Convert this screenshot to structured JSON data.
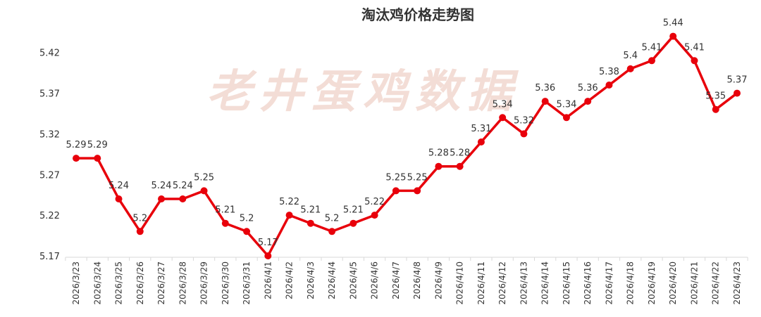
{
  "chart_data": {
    "type": "line",
    "title": "淘汰鸡价格走势图",
    "watermark": "老井蛋鸡数据",
    "x": [
      "2026/3/23",
      "2026/3/24",
      "2026/3/25",
      "2026/3/26",
      "2026/3/27",
      "2026/3/28",
      "2026/3/29",
      "2026/3/30",
      "2026/3/31",
      "2026/4/1",
      "2026/4/2",
      "2026/4/3",
      "2026/4/4",
      "2026/4/5",
      "2026/4/6",
      "2026/4/7",
      "2026/4/8",
      "2026/4/9",
      "2026/4/10",
      "2026/4/11",
      "2026/4/12",
      "2026/4/13",
      "2026/4/14",
      "2026/4/15",
      "2026/4/16",
      "2026/4/17",
      "2026/4/18",
      "2026/4/19",
      "2026/4/20",
      "2026/4/21",
      "2026/4/22",
      "2026/4/23"
    ],
    "series": [
      {
        "values": [
          5.29,
          5.29,
          5.24,
          5.2,
          5.24,
          5.24,
          5.25,
          5.21,
          5.2,
          5.17,
          5.22,
          5.21,
          5.2,
          5.21,
          5.22,
          5.25,
          5.25,
          5.28,
          5.28,
          5.31,
          5.34,
          5.32,
          5.36,
          5.34,
          5.36,
          5.38,
          5.4,
          5.41,
          5.44,
          5.41,
          5.35,
          5.37
        ],
        "color": "#e8000b"
      }
    ],
    "data_labels": [
      "5.29",
      "5.29",
      "5.24",
      "5.2",
      "5.24",
      "5.24",
      "5.25",
      "5.21",
      "5.2",
      "5.17",
      "5.22",
      "5.21",
      "5.2",
      "5.21",
      "5.22",
      "5.25",
      "5.25",
      "5.28",
      "5.28",
      "5.31",
      "5.34",
      "5.32",
      "5.36",
      "5.34",
      "5.36",
      "5.38",
      "5.4",
      "5.41",
      "5.44",
      "5.41",
      "5.35",
      "5.37"
    ],
    "y_ticks": [
      "5.17",
      "5.22",
      "5.27",
      "5.32",
      "5.37",
      "5.42"
    ],
    "ylim": [
      5.17,
      5.45
    ],
    "grid": false,
    "legend": "none",
    "xlabel": "",
    "ylabel": ""
  }
}
